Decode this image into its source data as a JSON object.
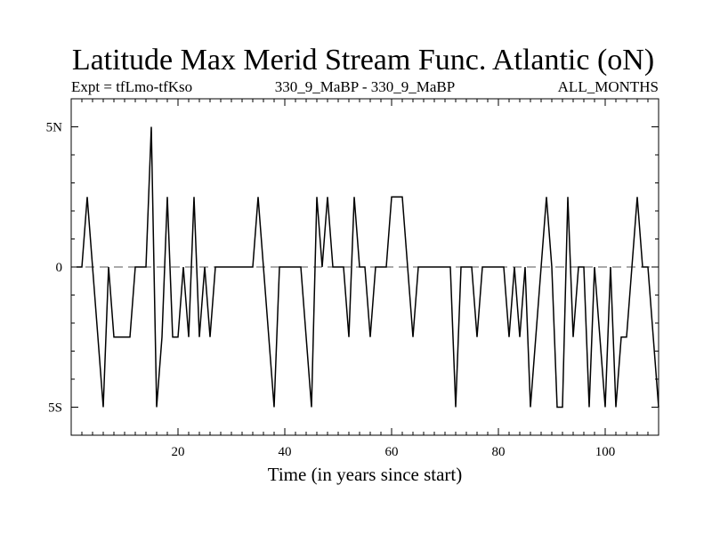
{
  "chart_data": {
    "type": "line",
    "title": "Latitude Max Merid Stream Func. Atlantic (oN)",
    "subtitle_left": "Expt = tfLmo-tfKso",
    "subtitle_center": "330_9_MaBP - 330_9_MaBP",
    "subtitle_right": "ALL_MONTHS",
    "xlabel": "Time (in years since start)",
    "ylabel": "",
    "xlim": [
      0,
      110
    ],
    "ylim": [
      -6,
      6
    ],
    "x_ticks": [
      20,
      40,
      60,
      80,
      100
    ],
    "x_tick_labels": [
      "20",
      "40",
      "60",
      "80",
      "100"
    ],
    "y_ticks": [
      5,
      0,
      -5
    ],
    "y_tick_labels": [
      "5N",
      "0",
      "5S"
    ],
    "zero_line": true,
    "series": [
      {
        "name": "latitude",
        "x": [
          1,
          2,
          3,
          4,
          5,
          6,
          7,
          8,
          9,
          10,
          11,
          12,
          13,
          14,
          15,
          16,
          17,
          18,
          19,
          20,
          21,
          22,
          23,
          24,
          25,
          26,
          27,
          28,
          29,
          30,
          31,
          32,
          33,
          34,
          35,
          36,
          37,
          38,
          39,
          40,
          41,
          42,
          43,
          44,
          45,
          46,
          47,
          48,
          49,
          50,
          51,
          52,
          53,
          54,
          55,
          56,
          57,
          58,
          59,
          60,
          61,
          62,
          63,
          64,
          65,
          66,
          67,
          68,
          69,
          70,
          71,
          72,
          73,
          74,
          75,
          76,
          77,
          78,
          79,
          80,
          81,
          82,
          83,
          84,
          85,
          86,
          87,
          88,
          89,
          90,
          91,
          92,
          93,
          94,
          95,
          96,
          97,
          98,
          99,
          100,
          101,
          102,
          103,
          104,
          105,
          106,
          107,
          108,
          109,
          110
        ],
        "values": [
          0,
          0,
          2.5,
          0,
          -2.5,
          -5,
          0,
          -2.5,
          -2.5,
          -2.5,
          -2.5,
          0,
          0,
          0,
          5,
          -5,
          -2.5,
          2.5,
          -2.5,
          -2.5,
          0,
          -2.5,
          2.5,
          -2.5,
          0,
          -2.5,
          0,
          0,
          0,
          0,
          0,
          0,
          0,
          0,
          2.5,
          0,
          -2.5,
          -5,
          0,
          0,
          0,
          0,
          0,
          -2.5,
          -5,
          2.5,
          0,
          2.5,
          0,
          0,
          0,
          -2.5,
          2.5,
          0,
          0,
          -2.5,
          0,
          0,
          0,
          2.5,
          2.5,
          2.5,
          0,
          -2.5,
          0,
          0,
          0,
          0,
          0,
          0,
          0,
          -5,
          0,
          0,
          0,
          -2.5,
          0,
          0,
          0,
          0,
          0,
          -2.5,
          0,
          -2.5,
          0,
          -5,
          -2.5,
          0,
          2.5,
          0,
          -5,
          -5,
          2.5,
          -2.5,
          0,
          0,
          -5,
          0,
          -2.5,
          -5,
          0,
          -5,
          -2.5,
          -2.5,
          0,
          2.5,
          0,
          0,
          -2.5,
          -5
        ]
      }
    ]
  }
}
